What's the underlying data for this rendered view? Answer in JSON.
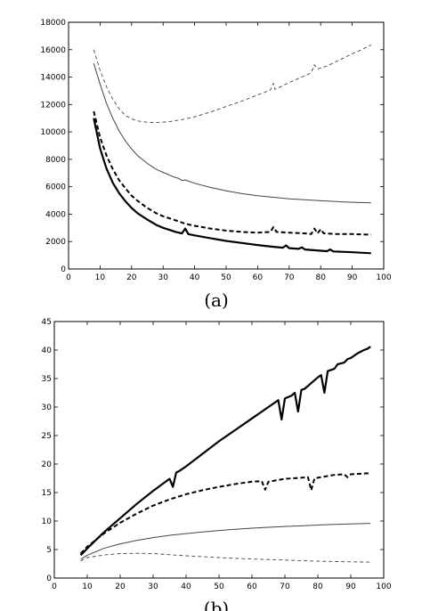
{
  "chart_data": [
    {
      "type": "line",
      "caption": "(a)",
      "xlim": [
        0,
        100
      ],
      "ylim": [
        0,
        18000
      ],
      "x_ticks": [
        0,
        10,
        20,
        30,
        40,
        50,
        60,
        70,
        80,
        90,
        100
      ],
      "y_ticks": [
        0,
        2000,
        4000,
        6000,
        8000,
        10000,
        12000,
        14000,
        16000,
        18000
      ],
      "grid": false,
      "legend": "none",
      "series": [
        {
          "style": "thin-dashed",
          "points": [
            [
              8,
              16000
            ],
            [
              10,
              14500
            ],
            [
              12,
              13300
            ],
            [
              14,
              12400
            ],
            [
              16,
              11700
            ],
            [
              18,
              11200
            ],
            [
              20,
              10950
            ],
            [
              22,
              10800
            ],
            [
              25,
              10700
            ],
            [
              28,
              10680
            ],
            [
              32,
              10750
            ],
            [
              36,
              10900
            ],
            [
              40,
              11100
            ],
            [
              45,
              11450
            ],
            [
              50,
              11850
            ],
            [
              55,
              12250
            ],
            [
              60,
              12700
            ],
            [
              64,
              13050
            ],
            [
              65,
              13550
            ],
            [
              65.5,
              13100
            ],
            [
              70,
              13600
            ],
            [
              75,
              14100
            ],
            [
              77,
              14300
            ],
            [
              78,
              14900
            ],
            [
              79,
              14600
            ],
            [
              82,
              14800
            ],
            [
              86,
              15250
            ],
            [
              90,
              15700
            ],
            [
              93,
              16000
            ],
            [
              96,
              16350
            ]
          ]
        },
        {
          "style": "thin-solid",
          "points": [
            [
              8,
              15000
            ],
            [
              10,
              13500
            ],
            [
              12,
              12100
            ],
            [
              14,
              11000
            ],
            [
              16,
              10100
            ],
            [
              18,
              9350
            ],
            [
              20,
              8750
            ],
            [
              22,
              8250
            ],
            [
              25,
              7700
            ],
            [
              28,
              7250
            ],
            [
              30,
              7050
            ],
            [
              33,
              6750
            ],
            [
              35,
              6600
            ],
            [
              36,
              6450
            ],
            [
              37,
              6500
            ],
            [
              40,
              6250
            ],
            [
              45,
              5950
            ],
            [
              50,
              5700
            ],
            [
              55,
              5500
            ],
            [
              60,
              5350
            ],
            [
              65,
              5230
            ],
            [
              70,
              5120
            ],
            [
              75,
              5050
            ],
            [
              80,
              4980
            ],
            [
              85,
              4920
            ],
            [
              90,
              4870
            ],
            [
              96,
              4820
            ]
          ]
        },
        {
          "style": "thick-dashed",
          "points": [
            [
              8,
              11500
            ],
            [
              10,
              9600
            ],
            [
              12,
              8300
            ],
            [
              14,
              7300
            ],
            [
              16,
              6500
            ],
            [
              18,
              5900
            ],
            [
              20,
              5350
            ],
            [
              22,
              4950
            ],
            [
              25,
              4450
            ],
            [
              28,
              4050
            ],
            [
              30,
              3850
            ],
            [
              34,
              3550
            ],
            [
              37,
              3300
            ],
            [
              40,
              3150
            ],
            [
              45,
              2950
            ],
            [
              50,
              2800
            ],
            [
              55,
              2700
            ],
            [
              60,
              2650
            ],
            [
              64,
              2700
            ],
            [
              65,
              3050
            ],
            [
              66,
              2700
            ],
            [
              70,
              2650
            ],
            [
              75,
              2600
            ],
            [
              77,
              2550
            ],
            [
              78,
              2950
            ],
            [
              79,
              2600
            ],
            [
              80,
              2900
            ],
            [
              81,
              2600
            ],
            [
              85,
              2550
            ],
            [
              90,
              2550
            ],
            [
              96,
              2500
            ]
          ]
        },
        {
          "style": "thick-solid",
          "points": [
            [
              8,
              11000
            ],
            [
              10,
              8800
            ],
            [
              12,
              7350
            ],
            [
              14,
              6300
            ],
            [
              16,
              5550
            ],
            [
              18,
              4950
            ],
            [
              20,
              4450
            ],
            [
              22,
              4050
            ],
            [
              25,
              3600
            ],
            [
              28,
              3200
            ],
            [
              30,
              3000
            ],
            [
              32,
              2850
            ],
            [
              34,
              2700
            ],
            [
              36,
              2600
            ],
            [
              37,
              2950
            ],
            [
              38,
              2550
            ],
            [
              40,
              2450
            ],
            [
              45,
              2250
            ],
            [
              50,
              2050
            ],
            [
              55,
              1900
            ],
            [
              60,
              1750
            ],
            [
              65,
              1620
            ],
            [
              68,
              1550
            ],
            [
              69,
              1720
            ],
            [
              70,
              1520
            ],
            [
              73,
              1470
            ],
            [
              74,
              1580
            ],
            [
              75,
              1420
            ],
            [
              80,
              1330
            ],
            [
              82,
              1300
            ],
            [
              83,
              1420
            ],
            [
              84,
              1280
            ],
            [
              90,
              1220
            ],
            [
              96,
              1150
            ]
          ]
        }
      ]
    },
    {
      "type": "line",
      "caption": "(b)",
      "xlim": [
        0,
        100
      ],
      "ylim": [
        0,
        45
      ],
      "x_ticks": [
        0,
        10,
        20,
        30,
        40,
        50,
        60,
        70,
        80,
        90,
        100
      ],
      "y_ticks": [
        0,
        5,
        10,
        15,
        20,
        25,
        30,
        35,
        40,
        45
      ],
      "grid": false,
      "legend": "none",
      "series": [
        {
          "style": "thick-solid",
          "points": [
            [
              8,
              4
            ],
            [
              10,
              5.2
            ],
            [
              15,
              8
            ],
            [
              20,
              10.5
            ],
            [
              25,
              13
            ],
            [
              30,
              15.3
            ],
            [
              34,
              17
            ],
            [
              35,
              17.4
            ],
            [
              36,
              16
            ],
            [
              37,
              18.5
            ],
            [
              38,
              18.8
            ],
            [
              40,
              19.6
            ],
            [
              45,
              21.8
            ],
            [
              50,
              24
            ],
            [
              55,
              26
            ],
            [
              60,
              28
            ],
            [
              65,
              30
            ],
            [
              68,
              31.2
            ],
            [
              69,
              27.8
            ],
            [
              70,
              31.5
            ],
            [
              72,
              32
            ],
            [
              73,
              32.5
            ],
            [
              74,
              29.2
            ],
            [
              75,
              33
            ],
            [
              76,
              33.2
            ],
            [
              80,
              35.2
            ],
            [
              81,
              35.6
            ],
            [
              82,
              32.5
            ],
            [
              83,
              36.3
            ],
            [
              85,
              36.7
            ],
            [
              86,
              37.5
            ],
            [
              88,
              37.8
            ],
            [
              89,
              38.4
            ],
            [
              90,
              38.6
            ],
            [
              92,
              39.4
            ],
            [
              94,
              40
            ],
            [
              95,
              40.2
            ],
            [
              96,
              40.6
            ]
          ]
        },
        {
          "style": "thick-dashed",
          "points": [
            [
              8,
              4.3
            ],
            [
              10,
              5.5
            ],
            [
              15,
              7.8
            ],
            [
              20,
              9.7
            ],
            [
              25,
              11.3
            ],
            [
              30,
              12.7
            ],
            [
              35,
              13.8
            ],
            [
              40,
              14.7
            ],
            [
              45,
              15.4
            ],
            [
              50,
              16
            ],
            [
              55,
              16.5
            ],
            [
              60,
              16.9
            ],
            [
              63,
              17
            ],
            [
              64,
              15.5
            ],
            [
              65,
              16.9
            ],
            [
              70,
              17.4
            ],
            [
              75,
              17.6
            ],
            [
              77,
              17.7
            ],
            [
              78,
              15.4
            ],
            [
              79,
              17.5
            ],
            [
              82,
              17.8
            ],
            [
              85,
              18.1
            ],
            [
              88,
              18.2
            ],
            [
              89,
              17.7
            ],
            [
              90,
              18.2
            ],
            [
              93,
              18.3
            ],
            [
              96,
              18.4
            ]
          ]
        },
        {
          "style": "thin-solid",
          "points": [
            [
              8,
              3.3
            ],
            [
              10,
              4
            ],
            [
              15,
              5.2
            ],
            [
              20,
              6
            ],
            [
              25,
              6.6
            ],
            [
              30,
              7.1
            ],
            [
              35,
              7.5
            ],
            [
              40,
              7.8
            ],
            [
              45,
              8.1
            ],
            [
              50,
              8.35
            ],
            [
              55,
              8.55
            ],
            [
              60,
              8.75
            ],
            [
              65,
              8.9
            ],
            [
              70,
              9.05
            ],
            [
              75,
              9.15
            ],
            [
              80,
              9.3
            ],
            [
              85,
              9.4
            ],
            [
              90,
              9.5
            ],
            [
              96,
              9.6
            ]
          ]
        },
        {
          "style": "thin-dashed",
          "points": [
            [
              8,
              3
            ],
            [
              10,
              3.6
            ],
            [
              15,
              4.05
            ],
            [
              20,
              4.3
            ],
            [
              25,
              4.35
            ],
            [
              30,
              4.3
            ],
            [
              35,
              4.1
            ],
            [
              40,
              3.9
            ],
            [
              45,
              3.75
            ],
            [
              50,
              3.6
            ],
            [
              55,
              3.45
            ],
            [
              60,
              3.35
            ],
            [
              65,
              3.25
            ],
            [
              70,
              3.15
            ],
            [
              75,
              3.05
            ],
            [
              80,
              2.95
            ],
            [
              85,
              2.9
            ],
            [
              90,
              2.85
            ],
            [
              96,
              2.8
            ]
          ]
        }
      ]
    }
  ]
}
